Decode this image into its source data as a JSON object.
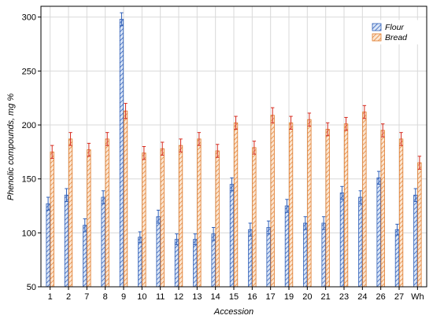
{
  "chart_data": {
    "type": "bar",
    "xlabel": "Accession",
    "ylabel": "Phenolic compounds, mg %",
    "ylim": [
      50,
      310
    ],
    "yticks": [
      50,
      100,
      150,
      200,
      250,
      300
    ],
    "grid": "on",
    "legend_position": "top-right",
    "categories": [
      "1",
      "2",
      "7",
      "8",
      "9",
      "10",
      "11",
      "12",
      "13",
      "14",
      "15",
      "16",
      "17",
      "19",
      "20",
      "21",
      "23",
      "24",
      "26",
      "27",
      "Wh"
    ],
    "series": [
      {
        "name": "Flour",
        "color": "#2f5fb8",
        "values": [
          127,
          135,
          107,
          133,
          298,
          96,
          115,
          94,
          94,
          99,
          145,
          103,
          105,
          125,
          109,
          109,
          137,
          133,
          151,
          103,
          135
        ],
        "errors": [
          6,
          6,
          6,
          6,
          6,
          5,
          6,
          5,
          5,
          6,
          6,
          6,
          6,
          6,
          6,
          6,
          6,
          6,
          6,
          5,
          6
        ]
      },
      {
        "name": "Bread",
        "color": "#e07a2a",
        "values": [
          175,
          187,
          177,
          187,
          213,
          174,
          178,
          181,
          187,
          176,
          202,
          179,
          209,
          202,
          205,
          196,
          201,
          212,
          195,
          187,
          165
        ],
        "errors": [
          6,
          6,
          6,
          6,
          7,
          6,
          6,
          6,
          6,
          6,
          6,
          6,
          7,
          6,
          6,
          6,
          6,
          6,
          6,
          6,
          6
        ]
      }
    ]
  }
}
